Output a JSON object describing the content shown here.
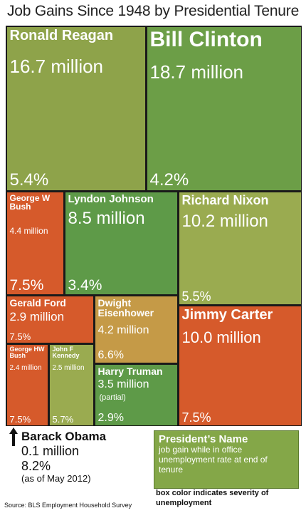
{
  "chart_data": {
    "type": "treemap",
    "title": "Job Gains Since 1948 by Presidential Tenure",
    "series": [
      {
        "id": "reagan",
        "name": "Ronald Reagan",
        "job_gain": "16.7 million",
        "job_gain_millions": 16.7,
        "unemployment": "5.4%",
        "color": "#8ea34a"
      },
      {
        "id": "clinton",
        "name": "Bill Clinton",
        "job_gain": "18.7 million",
        "job_gain_millions": 18.7,
        "unemployment": "4.2%",
        "color": "#6c9e47"
      },
      {
        "id": "gwbush",
        "name": "George W Bush",
        "job_gain": "4.4 million",
        "job_gain_millions": 4.4,
        "unemployment": "7.5%",
        "color": "#d65a2b"
      },
      {
        "id": "lbj",
        "name": "Lyndon Johnson",
        "job_gain": "8.5 million",
        "job_gain_millions": 8.5,
        "unemployment": "3.4%",
        "color": "#5e9a48"
      },
      {
        "id": "nixon",
        "name": "Richard Nixon",
        "job_gain": "10.2 million",
        "job_gain_millions": 10.2,
        "unemployment": "5.5%",
        "color": "#9aab50"
      },
      {
        "id": "ford",
        "name": "Gerald Ford",
        "job_gain": "2.9 million",
        "job_gain_millions": 2.9,
        "unemployment": "7.5%",
        "color": "#d65a2b"
      },
      {
        "id": "eisenhower",
        "name": "Dwight Eisenhower",
        "job_gain": "4.2 million",
        "job_gain_millions": 4.2,
        "unemployment": "6.6%",
        "color": "#c59a47"
      },
      {
        "id": "carter",
        "name": "Jimmy Carter",
        "job_gain": "10.0 million",
        "job_gain_millions": 10.0,
        "unemployment": "7.5%",
        "color": "#d65a2b"
      },
      {
        "id": "ghwbush",
        "name": "George HW Bush",
        "job_gain": "2.4 million",
        "job_gain_millions": 2.4,
        "unemployment": "7.5%",
        "color": "#d65a2b"
      },
      {
        "id": "jfk",
        "name": "John F Kennedy",
        "job_gain": "2.5 million",
        "job_gain_millions": 2.5,
        "unemployment": "5.7%",
        "color": "#9aab50"
      },
      {
        "id": "truman",
        "name": "Harry Truman",
        "job_gain": "3.5 million",
        "job_gain_millions": 3.5,
        "note": "(partial)",
        "unemployment": "2.9%",
        "color": "#5e9a48"
      }
    ],
    "obama": {
      "name": "Barack Obama",
      "job_gain": "0.1 million",
      "unemployment": "8.2%",
      "note": "(as of May 2012)"
    },
    "legend": {
      "name": "President’s Name",
      "gain": "job gain while in office",
      "rate": "unemployment rate at end of tenure",
      "color_note": "box color indicates severity of unemployment",
      "color": "#84a748"
    },
    "source": "Source: BLS Employment Household Survey"
  }
}
